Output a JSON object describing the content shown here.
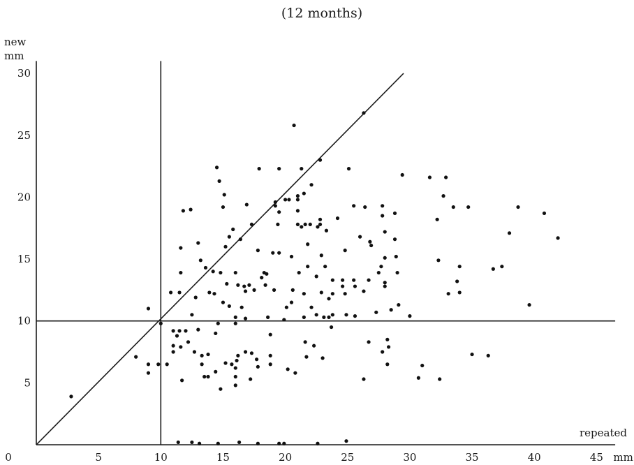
{
  "chart_data": {
    "type": "scatter",
    "title": "(12 months)",
    "xlabel": "repeated",
    "xunit": "mm",
    "ylabel_lines": [
      "new",
      "mm"
    ],
    "xlim": [
      0,
      46.5
    ],
    "ylim": [
      0,
      31
    ],
    "x_ticks": [
      {
        "value": 0,
        "label": "0"
      },
      {
        "value": 5,
        "label": "5"
      },
      {
        "value": 10,
        "label": "10"
      },
      {
        "value": 15,
        "label": "15"
      },
      {
        "value": 20,
        "label": "20"
      },
      {
        "value": 25,
        "label": "25"
      },
      {
        "value": 30,
        "label": "30"
      },
      {
        "value": 35,
        "label": "35"
      },
      {
        "value": 40,
        "label": "40"
      },
      {
        "value": 45,
        "label": "45"
      }
    ],
    "y_ticks": [
      {
        "value": 5,
        "label": "5"
      },
      {
        "value": 10,
        "label": "10"
      },
      {
        "value": 15,
        "label": "15"
      },
      {
        "value": 20,
        "label": "20"
      },
      {
        "value": 25,
        "label": "25"
      },
      {
        "value": 30,
        "label": "30"
      }
    ],
    "reference_lines": [
      {
        "kind": "vertical",
        "x": 10,
        "y_range": [
          0,
          31
        ]
      },
      {
        "kind": "horizontal",
        "y": 10,
        "x_range": [
          0,
          46.5
        ]
      },
      {
        "kind": "diagonal",
        "from": [
          0,
          0
        ],
        "to": [
          29.5,
          30
        ]
      }
    ],
    "points": [
      [
        2.8,
        3.9
      ],
      [
        8,
        7.1
      ],
      [
        9,
        11
      ],
      [
        9,
        6.5
      ],
      [
        9,
        5.8
      ],
      [
        9.8,
        6.5
      ],
      [
        10,
        9.8
      ],
      [
        10.5,
        6.5
      ],
      [
        10.8,
        12.3
      ],
      [
        11,
        9.2
      ],
      [
        11,
        8
      ],
      [
        11,
        7.5
      ],
      [
        11.3,
        8.8
      ],
      [
        11.5,
        12.3
      ],
      [
        11.5,
        9.2
      ],
      [
        11.6,
        7.9
      ],
      [
        11.7,
        5.2
      ],
      [
        11.6,
        15.9
      ],
      [
        11.8,
        18.9
      ],
      [
        11.6,
        13.9
      ],
      [
        12,
        9.2
      ],
      [
        12.2,
        8.3
      ],
      [
        12.4,
        19
      ],
      [
        12.7,
        7.5
      ],
      [
        12.5,
        10.5
      ],
      [
        12.8,
        11.9
      ],
      [
        13,
        16.3
      ],
      [
        13,
        9.3
      ],
      [
        13.2,
        14.9
      ],
      [
        13.3,
        7.2
      ],
      [
        13.3,
        6.5
      ],
      [
        13.5,
        5.5
      ],
      [
        13.8,
        5.5
      ],
      [
        13.8,
        7.3
      ],
      [
        13.6,
        14.3
      ],
      [
        13.9,
        12.3
      ],
      [
        14.2,
        14
      ],
      [
        14.3,
        12.2
      ],
      [
        14.4,
        9
      ],
      [
        14.4,
        5.9
      ],
      [
        14.5,
        22.4
      ],
      [
        14.7,
        21.3
      ],
      [
        14.8,
        13.9
      ],
      [
        14.8,
        4.5
      ],
      [
        14.6,
        9.8
      ],
      [
        15,
        19.2
      ],
      [
        15.1,
        20.2
      ],
      [
        15.2,
        16
      ],
      [
        15,
        11.5
      ],
      [
        15.2,
        6.6
      ],
      [
        15.5,
        16.8
      ],
      [
        15.5,
        11.2
      ],
      [
        15.3,
        13
      ],
      [
        15.7,
        6.5
      ],
      [
        15.8,
        17.4
      ],
      [
        16,
        13.9
      ],
      [
        16.2,
        12.9
      ],
      [
        16,
        10.3
      ],
      [
        16,
        9.8
      ],
      [
        16.2,
        7.2
      ],
      [
        16.1,
        6.8
      ],
      [
        16,
        6.2
      ],
      [
        16,
        5.5
      ],
      [
        16,
        4.8
      ],
      [
        16.4,
        16.6
      ],
      [
        16.5,
        11.1
      ],
      [
        16.7,
        12.8
      ],
      [
        16.8,
        10.2
      ],
      [
        16.8,
        7.5
      ],
      [
        16.8,
        12.4
      ],
      [
        16.9,
        19.4
      ],
      [
        17.1,
        12.9
      ],
      [
        17.3,
        7.4
      ],
      [
        17.2,
        5.3
      ],
      [
        17.3,
        17.8
      ],
      [
        17.5,
        12.5
      ],
      [
        17.7,
        6.9
      ],
      [
        17.8,
        15.7
      ],
      [
        17.8,
        6.3
      ],
      [
        17.9,
        22.3
      ],
      [
        18.1,
        13.5
      ],
      [
        18.3,
        13.9
      ],
      [
        18.5,
        13.8
      ],
      [
        18.4,
        12.9
      ],
      [
        18.6,
        10.3
      ],
      [
        18.8,
        8.9
      ],
      [
        18.8,
        6.5
      ],
      [
        18.8,
        7.2
      ],
      [
        19,
        15.5
      ],
      [
        19.1,
        12.5
      ],
      [
        19.2,
        19.6
      ],
      [
        19.2,
        19.3
      ],
      [
        19.4,
        17.8
      ],
      [
        19.5,
        22.3
      ],
      [
        19.5,
        18.8
      ],
      [
        19.5,
        15.5
      ],
      [
        19.9,
        10.1
      ],
      [
        20,
        19.8
      ],
      [
        20.1,
        11.1
      ],
      [
        20.2,
        6.1
      ],
      [
        20.3,
        19.8
      ],
      [
        20.5,
        15.2
      ],
      [
        20.5,
        11.5
      ],
      [
        20.6,
        12.5
      ],
      [
        20.7,
        25.8
      ],
      [
        20.8,
        5.8
      ],
      [
        21,
        20.1
      ],
      [
        21,
        19.8
      ],
      [
        21,
        18.9
      ],
      [
        21,
        17.8
      ],
      [
        21.1,
        13.9
      ],
      [
        21.3,
        22.3
      ],
      [
        21.3,
        17.6
      ],
      [
        21.5,
        12.2
      ],
      [
        21.5,
        10.3
      ],
      [
        21.5,
        20.3
      ],
      [
        21.6,
        8.3
      ],
      [
        21.6,
        17.8
      ],
      [
        21.8,
        16.2
      ],
      [
        21.7,
        7.1
      ],
      [
        21.8,
        14.4
      ],
      [
        22,
        17.8
      ],
      [
        22.1,
        21
      ],
      [
        22.1,
        11.1
      ],
      [
        22.3,
        8
      ],
      [
        22.5,
        10.5
      ],
      [
        22.6,
        17.6
      ],
      [
        22.5,
        13.6
      ],
      [
        22.8,
        23
      ],
      [
        22.8,
        17.8
      ],
      [
        22.8,
        18.2
      ],
      [
        22.9,
        15.3
      ],
      [
        22.9,
        12.3
      ],
      [
        23,
        7
      ],
      [
        23.2,
        14.4
      ],
      [
        23.1,
        10.3
      ],
      [
        23.3,
        17.3
      ],
      [
        23.5,
        11.8
      ],
      [
        23.5,
        10.3
      ],
      [
        23.7,
        9.5
      ],
      [
        23.8,
        12.2
      ],
      [
        23.8,
        13.3
      ],
      [
        23.8,
        10.5
      ],
      [
        24.2,
        18.3
      ],
      [
        24.6,
        13.3
      ],
      [
        24.6,
        12.8
      ],
      [
        24.8,
        15.7
      ],
      [
        24.8,
        12.2
      ],
      [
        24.9,
        10.5
      ],
      [
        25.1,
        22.3
      ],
      [
        25.5,
        19.3
      ],
      [
        25.5,
        13.3
      ],
      [
        25.6,
        12.8
      ],
      [
        25.6,
        10.4
      ],
      [
        26,
        16.8
      ],
      [
        26.3,
        26.8
      ],
      [
        26.3,
        12.4
      ],
      [
        26.3,
        5.3
      ],
      [
        26.4,
        19.2
      ],
      [
        26.7,
        13.3
      ],
      [
        26.7,
        8.3
      ],
      [
        26.8,
        16.4
      ],
      [
        26.9,
        16.1
      ],
      [
        27.3,
        10.7
      ],
      [
        27.5,
        13.9
      ],
      [
        27.7,
        14.4
      ],
      [
        27.8,
        7.5
      ],
      [
        27.8,
        19.3
      ],
      [
        27.8,
        18.5
      ],
      [
        28,
        17.2
      ],
      [
        28,
        15.1
      ],
      [
        28,
        13.1
      ],
      [
        28,
        12.8
      ],
      [
        28.2,
        8.5
      ],
      [
        28.2,
        6.5
      ],
      [
        28.3,
        7.9
      ],
      [
        28.5,
        10.9
      ],
      [
        28.8,
        18.7
      ],
      [
        28.8,
        16.6
      ],
      [
        28.9,
        15.2
      ],
      [
        29,
        13.9
      ],
      [
        29.1,
        11.3
      ],
      [
        29.4,
        21.8
      ],
      [
        30,
        10.4
      ],
      [
        30.7,
        5.4
      ],
      [
        31,
        6.4
      ],
      [
        31.6,
        21.6
      ],
      [
        32.2,
        18.2
      ],
      [
        32.3,
        14.9
      ],
      [
        32.4,
        5.3
      ],
      [
        32.7,
        20.1
      ],
      [
        32.9,
        21.6
      ],
      [
        33.1,
        12.2
      ],
      [
        33.5,
        19.2
      ],
      [
        33.8,
        13.2
      ],
      [
        34,
        14.4
      ],
      [
        34,
        12.3
      ],
      [
        34.7,
        19.2
      ],
      [
        35,
        7.3
      ],
      [
        36.3,
        7.2
      ],
      [
        36.7,
        14.2
      ],
      [
        37.4,
        14.4
      ],
      [
        38,
        17.1
      ],
      [
        38.7,
        19.2
      ],
      [
        39.6,
        11.3
      ],
      [
        40.8,
        18.7
      ],
      [
        41.9,
        16.7
      ],
      [
        11.4,
        0.2
      ],
      [
        12.5,
        0.2
      ],
      [
        13.1,
        0.1
      ],
      [
        14.6,
        0.1
      ],
      [
        16.3,
        0.2
      ],
      [
        17.8,
        0.1
      ],
      [
        19.5,
        0.1
      ],
      [
        19.9,
        0.1
      ],
      [
        22.6,
        0.1
      ],
      [
        24.9,
        0.3
      ]
    ]
  }
}
